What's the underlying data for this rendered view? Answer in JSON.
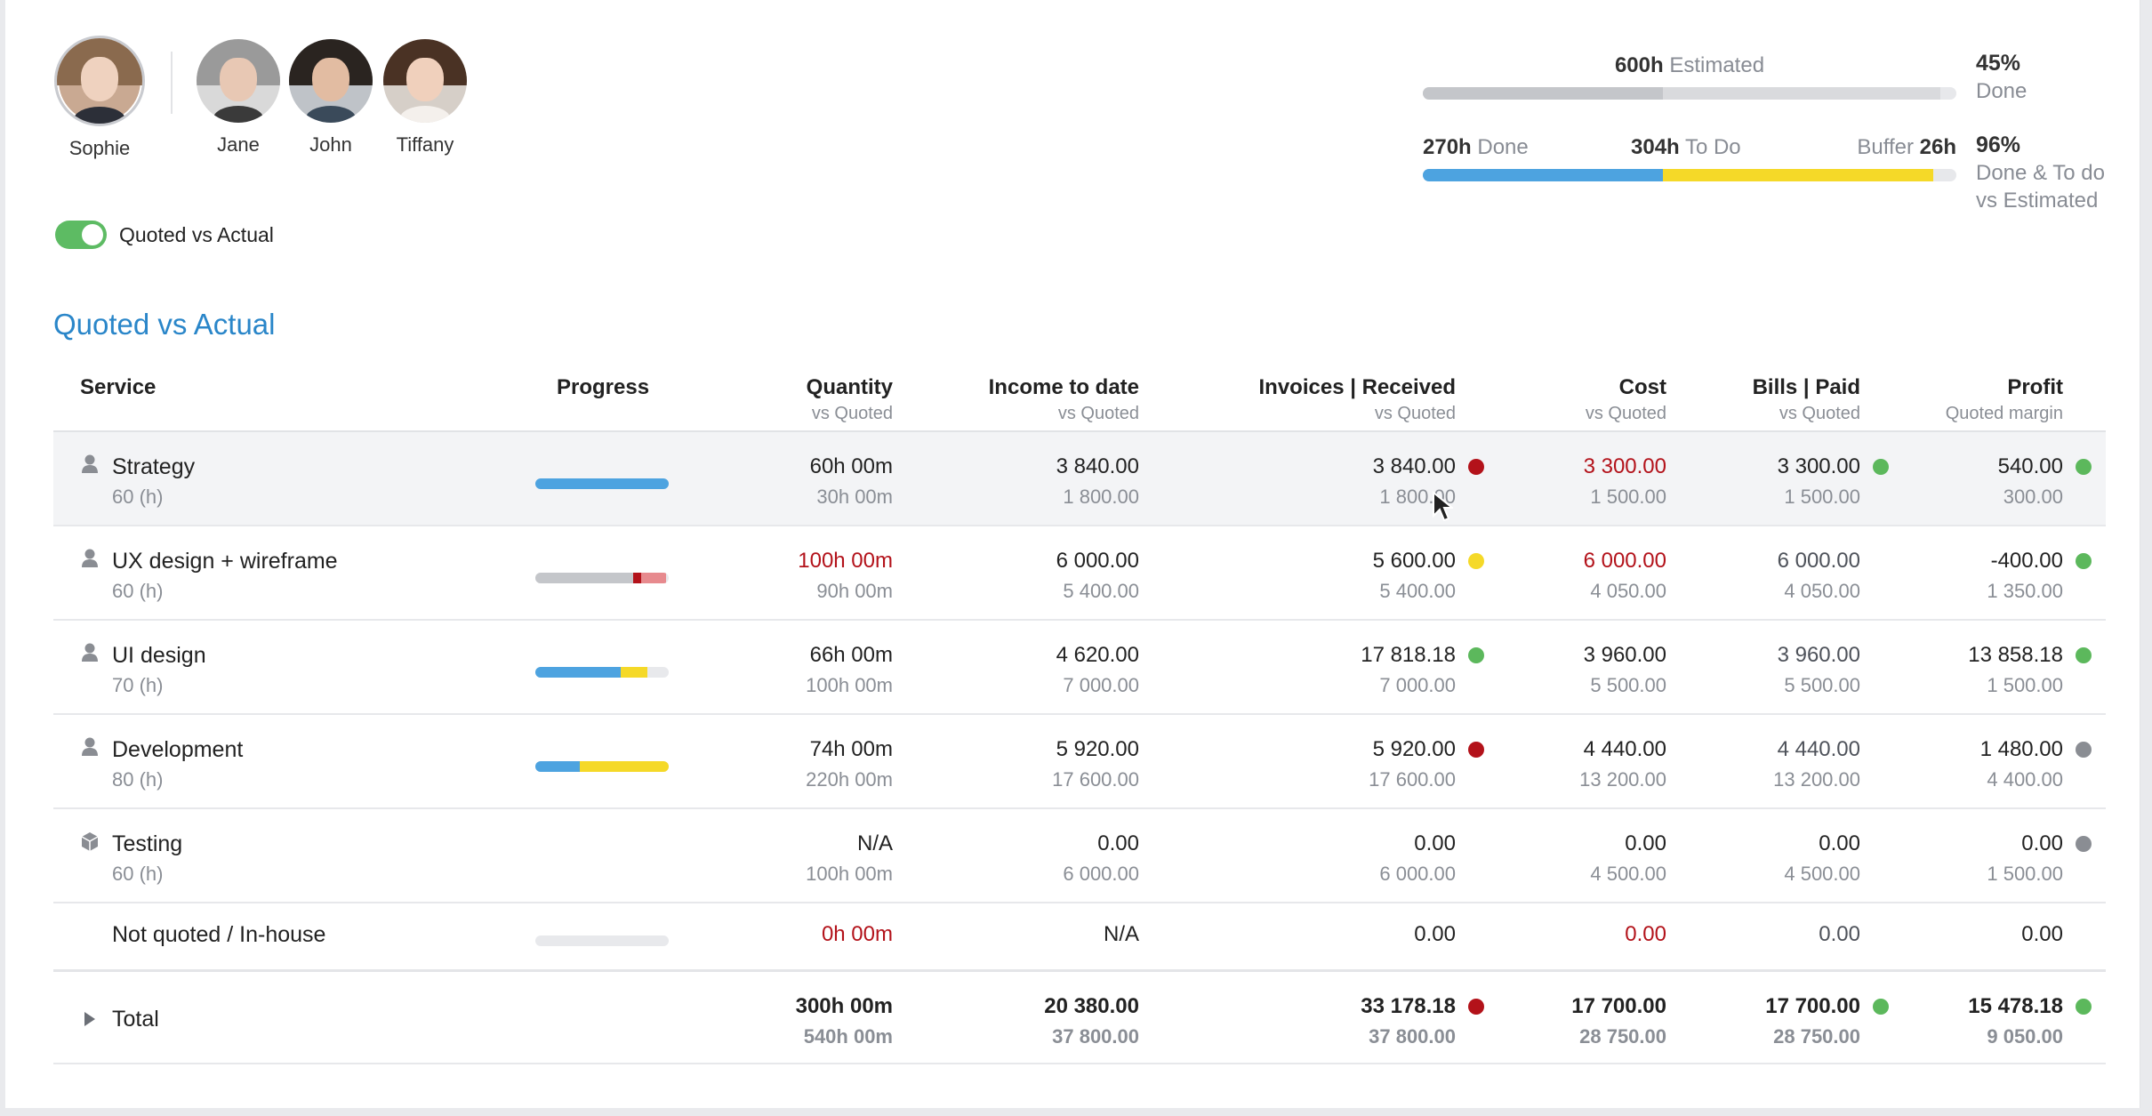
{
  "team": {
    "primary": {
      "name": "Sophie"
    },
    "members": [
      {
        "name": "Jane"
      },
      {
        "name": "John"
      },
      {
        "name": "Tiffany"
      }
    ]
  },
  "toggle": {
    "label": "Quoted vs Actual",
    "on": true
  },
  "estimate": {
    "estimated_value": "600h",
    "estimated_label": "Estimated",
    "done_value": "270h",
    "done_label": "Done",
    "todo_value": "304h",
    "todo_label": "To Do",
    "buffer_label": "Buffer",
    "buffer_value": "26h",
    "pct_done_value": "45%",
    "pct_done_label": "Done",
    "pct_total_value": "96%",
    "pct_total_label_1": "Done & To do",
    "pct_total_label_2": "vs Estimated",
    "bar1_fill": 0.45,
    "bar2_done": 0.45,
    "bar2_todo": 0.507,
    "colors": {
      "done": "#4da3e0",
      "todo": "#f5d928",
      "estimated": "#c4c6ca"
    }
  },
  "section_title": "Quoted vs Actual",
  "columns": {
    "service": "Service",
    "progress": "Progress",
    "quantity": "Quantity",
    "quantity_sub": "vs Quoted",
    "income": "Income to date",
    "income_sub": "vs Quoted",
    "invoices": "Invoices | Received",
    "invoices_sub": "vs Quoted",
    "cost": "Cost",
    "cost_sub": "vs Quoted",
    "bills": "Bills | Paid",
    "bills_sub": "vs Quoted",
    "profit": "Profit",
    "profit_sub": "Quoted margin"
  },
  "rows": [
    {
      "name": "Strategy",
      "hours": "60 (h)",
      "icon": "person-icon",
      "quantity": "60h 00m",
      "quantity_q": "30h 00m",
      "income": "3 840.00",
      "income_q": "1 800.00",
      "invoices": "3 840.00",
      "invoices_q": "1 800.00",
      "invoices_status": "#b3121a",
      "cost": "3 300.00",
      "cost_q": "1 500.00",
      "bills": "3 300.00",
      "bills_q": "1 500.00",
      "bills_status": "#5cb85c",
      "profit": "540.00",
      "profit_q": "300.00",
      "profit_status": "#5cb85c"
    },
    {
      "name": "UX design + wireframe",
      "hours": "60 (h)",
      "icon": "person-icon",
      "quantity": "100h 00m",
      "quantity_q": "90h 00m",
      "income": "6 000.00",
      "income_q": "5 400.00",
      "invoices": "5 600.00",
      "invoices_q": "5 400.00",
      "invoices_status": "#f5d928",
      "cost": "6 000.00",
      "cost_q": "4 050.00",
      "bills": "6 000.00",
      "bills_q": "4 050.00",
      "bills_status": "",
      "profit": "-400.00",
      "profit_q": "1 350.00",
      "profit_status": "#5cb85c"
    },
    {
      "name": "UI design",
      "hours": "70 (h)",
      "icon": "person-icon",
      "quantity": "66h 00m",
      "quantity_q": "100h 00m",
      "income": "4 620.00",
      "income_q": "7 000.00",
      "invoices": "17 818.18",
      "invoices_q": "7 000.00",
      "invoices_status": "#5cb85c",
      "cost": "3 960.00",
      "cost_q": "5 500.00",
      "bills": "3 960.00",
      "bills_q": "5 500.00",
      "bills_status": "",
      "profit": "13 858.18",
      "profit_q": "1 500.00",
      "profit_status": "#5cb85c"
    },
    {
      "name": "Development",
      "hours": "80 (h)",
      "icon": "person-icon",
      "quantity": "74h 00m",
      "quantity_q": "220h 00m",
      "income": "5 920.00",
      "income_q": "17 600.00",
      "invoices": "5 920.00",
      "invoices_q": "17 600.00",
      "invoices_status": "#b3121a",
      "cost": "4 440.00",
      "cost_q": "13 200.00",
      "bills": "4 440.00",
      "bills_q": "13 200.00",
      "bills_status": "",
      "profit": "1 480.00",
      "profit_q": "4 400.00",
      "profit_status": "#8a8d93"
    },
    {
      "name": "Testing",
      "hours": "60 (h)",
      "icon": "box-icon",
      "quantity": "N/A",
      "quantity_q": "100h 00m",
      "income": "0.00",
      "income_q": "6 000.00",
      "invoices": "0.00",
      "invoices_q": "6 000.00",
      "invoices_status": "",
      "cost": "0.00",
      "cost_q": "4 500.00",
      "bills": "0.00",
      "bills_q": "4 500.00",
      "bills_status": "",
      "profit": "0.00",
      "profit_q": "1 500.00",
      "profit_status": "#8a8d93"
    },
    {
      "name": "Not quoted / In-house",
      "quantity": "0h 00m",
      "income": "N/A",
      "invoices": "0.00",
      "cost": "0.00",
      "bills": "0.00",
      "profit": "0.00"
    }
  ],
  "total": {
    "label": "Total",
    "quantity": "300h 00m",
    "quantity_q": "540h 00m",
    "income": "20 380.00",
    "income_q": "37 800.00",
    "invoices": "33 178.18",
    "invoices_q": "37 800.00",
    "invoices_status": "#b3121a",
    "cost": "17 700.00",
    "cost_q": "28 750.00",
    "bills": "17 700.00",
    "bills_q": "28 750.00",
    "bills_status": "#5cb85c",
    "profit": "15 478.18",
    "profit_q": "9 050.00",
    "profit_status": "#5cb85c"
  },
  "progress_bars": [
    {
      "done": 1.0,
      "todo": 0,
      "over": 0,
      "overlight": 0
    },
    {
      "done": 0,
      "gray": 0.73,
      "over": 0.06,
      "overlight": 0.19
    },
    {
      "done": 0.64,
      "todo": 0.2,
      "over": 0,
      "overlight": 0
    },
    {
      "done": 0.33,
      "todo": 0.67,
      "over": 0,
      "overlight": 0
    },
    null,
    {
      "done": 0,
      "todo": 0,
      "over": 0,
      "overlight": 0
    }
  ]
}
